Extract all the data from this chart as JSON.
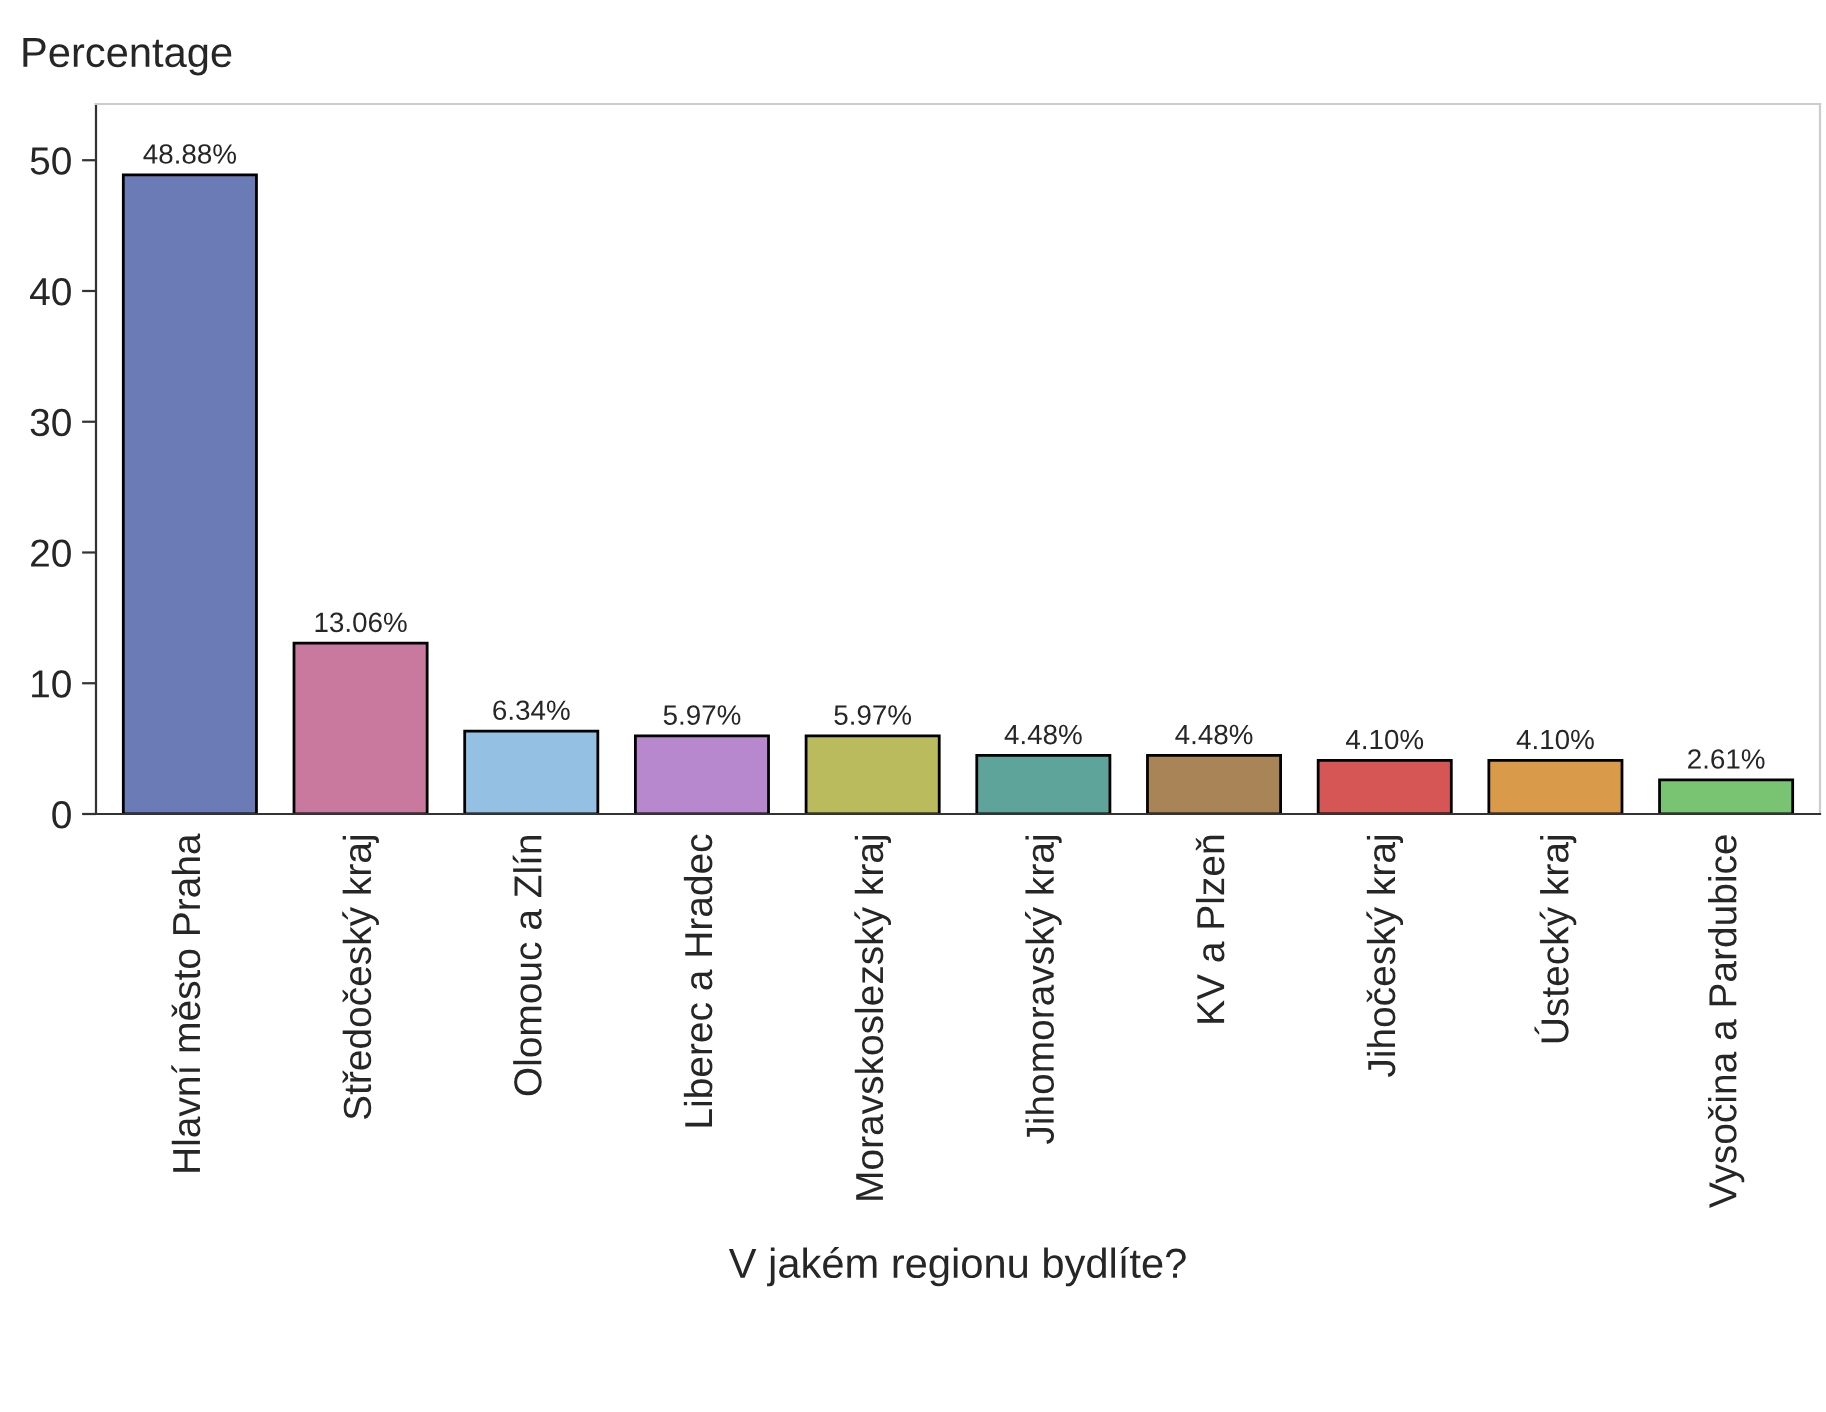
{
  "chart_data": {
    "type": "bar",
    "xlabel": "V jakém regionu bydlíte?",
    "ylabel": "Percentage",
    "categories": [
      "Hlavní město Praha",
      "Středočeský kraj",
      "Olomouc a Zlín",
      "Liberec a Hradec",
      "Moravskoslezský kraj",
      "Jihomoravský kraj",
      "KV a Plzeň",
      "Jihočeský kraj",
      "Ústecký kraj",
      "Vysočina a Pardubice"
    ],
    "values": [
      48.88,
      13.06,
      6.34,
      5.97,
      5.97,
      4.48,
      4.48,
      4.1,
      4.1,
      2.61
    ],
    "value_labels": [
      "48.88%",
      "13.06%",
      "6.34%",
      "5.97%",
      "5.97%",
      "4.48%",
      "4.48%",
      "4.10%",
      "4.10%",
      "2.61%"
    ],
    "colors": [
      "#6b7bb5",
      "#c9799e",
      "#93c0e3",
      "#b888cf",
      "#b9bb5d",
      "#5fa49b",
      "#a88457",
      "#d65555",
      "#d99a4a",
      "#78c473"
    ],
    "ylim": [
      0,
      54.3
    ],
    "yticks": [
      0,
      10,
      20,
      30,
      40,
      50
    ],
    "grid": false,
    "legend": false
  }
}
